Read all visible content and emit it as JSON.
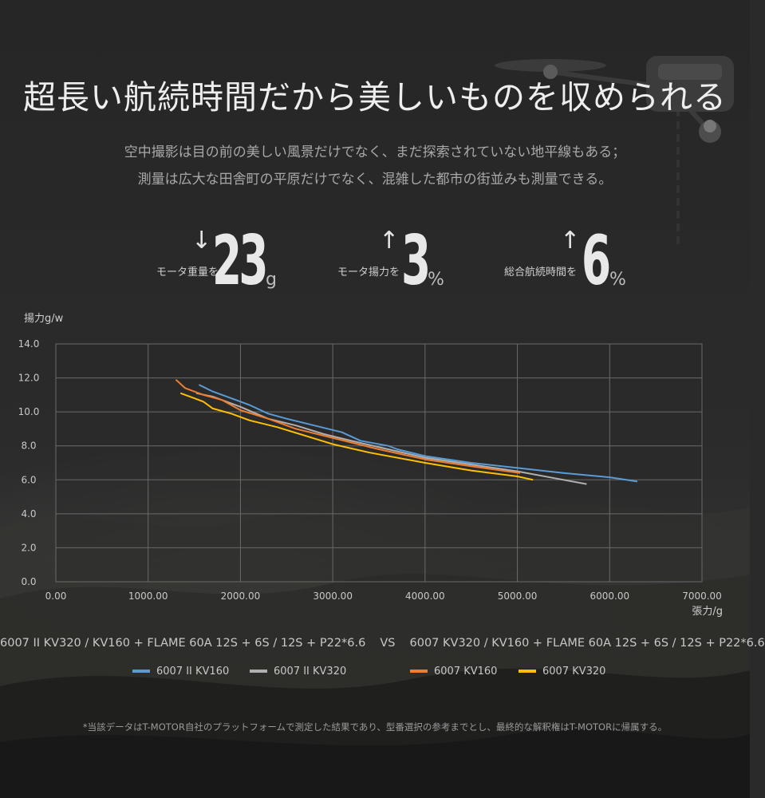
{
  "header": {
    "title": "超長い航続時間だから美しいものを収められる",
    "subtitle_line1": "空中撮影は目の前の美しい風景だけでなく、まだ探索されていない地平線もある；",
    "subtitle_line2": "測量は広大な田舎町の平原だけでなく、混雑した都市の街並みも測量できる。"
  },
  "stats": [
    {
      "arrow": "↓",
      "label": "モータ重量を",
      "value": "23",
      "unit": "g"
    },
    {
      "arrow": "↑",
      "label": "モータ揚力を",
      "value": "3",
      "unit": "%"
    },
    {
      "arrow": "↑",
      "label": "総合航続時間を",
      "value": "6",
      "unit": "%"
    }
  ],
  "comparison": {
    "left": "6007 II KV320 / KV160 + FLAME 60A 12S + 6S / 12S + P22*6.6",
    "vs": "VS",
    "right": "6007 KV320 / KV160 + FLAME 60A 12S + 6S / 12S + P22*6.6"
  },
  "footnote": "*当該データはT-MOTOR自社のプラットフォームで測定した結果であり、型番選択の参考までとし、最終的な解釈権はT-MOTORに帰属する。",
  "colors": {
    "series_blue": "#5b9bd5",
    "series_gray": "#b0b0b0",
    "series_orange": "#ed7d31",
    "series_yellow": "#ffc000",
    "grid": "#6a6a6a"
  },
  "chart_data": {
    "type": "line",
    "ylabel": "揚力g/w",
    "xlabel": "張力/g",
    "xlim": [
      0,
      7000
    ],
    "ylim": [
      0,
      14
    ],
    "x_ticks": [
      "0.00",
      "1000.00",
      "2000.00",
      "3000.00",
      "4000.00",
      "5000.00",
      "6000.00",
      "7000.00"
    ],
    "y_ticks": [
      "0.0",
      "2.0",
      "4.0",
      "6.0",
      "8.0",
      "10.0",
      "12.0",
      "14.0"
    ],
    "grid": true,
    "legend_position": "bottom",
    "series": [
      {
        "name": "6007 II KV160",
        "color": "#5b9bd5",
        "points": [
          [
            1550,
            11.6
          ],
          [
            1700,
            11.2
          ],
          [
            1900,
            10.8
          ],
          [
            2100,
            10.4
          ],
          [
            2300,
            9.9
          ],
          [
            2500,
            9.6
          ],
          [
            2800,
            9.2
          ],
          [
            3100,
            8.8
          ],
          [
            3300,
            8.3
          ],
          [
            3600,
            8.0
          ],
          [
            3700,
            7.8
          ],
          [
            4000,
            7.4
          ],
          [
            4500,
            7.0
          ],
          [
            5000,
            6.7
          ],
          [
            5500,
            6.4
          ],
          [
            6000,
            6.15
          ],
          [
            6300,
            5.9
          ]
        ]
      },
      {
        "name": "6007 II KV320",
        "color": "#b0b0b0",
        "points": [
          [
            1520,
            11.1
          ],
          [
            1700,
            10.9
          ],
          [
            2000,
            10.3
          ],
          [
            2300,
            9.6
          ],
          [
            2600,
            9.2
          ],
          [
            2900,
            8.7
          ],
          [
            3200,
            8.3
          ],
          [
            3600,
            7.8
          ],
          [
            4000,
            7.3
          ],
          [
            4500,
            6.9
          ],
          [
            5000,
            6.5
          ],
          [
            5400,
            6.1
          ],
          [
            5750,
            5.75
          ]
        ]
      },
      {
        "name": "6007 KV160",
        "color": "#ed7d31",
        "points": [
          [
            1300,
            11.9
          ],
          [
            1400,
            11.4
          ],
          [
            1600,
            11.0
          ],
          [
            1800,
            10.7
          ],
          [
            2000,
            10.1
          ],
          [
            2300,
            9.6
          ],
          [
            2600,
            9.0
          ],
          [
            2900,
            8.6
          ],
          [
            3200,
            8.2
          ],
          [
            3500,
            7.8
          ],
          [
            4000,
            7.2
          ],
          [
            4500,
            6.8
          ],
          [
            5030,
            6.4
          ]
        ]
      },
      {
        "name": "6007 KV320",
        "color": "#ffc000",
        "points": [
          [
            1350,
            11.1
          ],
          [
            1500,
            10.8
          ],
          [
            1600,
            10.6
          ],
          [
            1700,
            10.2
          ],
          [
            1900,
            9.9
          ],
          [
            2100,
            9.5
          ],
          [
            2400,
            9.1
          ],
          [
            2700,
            8.6
          ],
          [
            3000,
            8.1
          ],
          [
            3400,
            7.6
          ],
          [
            4000,
            7.0
          ],
          [
            4500,
            6.55
          ],
          [
            5000,
            6.2
          ],
          [
            5170,
            6.0
          ]
        ]
      }
    ]
  }
}
